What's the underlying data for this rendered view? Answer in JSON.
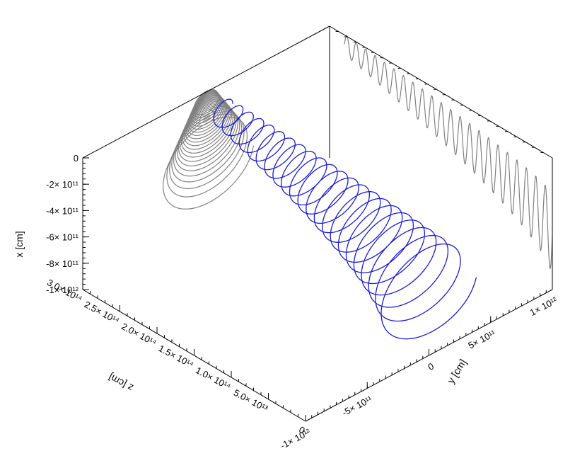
{
  "chart_data": {
    "type": "line",
    "projection": "3d",
    "axes": {
      "x": {
        "label": "x [cm]",
        "ticks": [
          {
            "value": 0,
            "label": "0"
          },
          {
            "value": -200000000000,
            "label": "-2× 10¹¹"
          },
          {
            "value": -400000000000,
            "label": "-4× 10¹¹"
          },
          {
            "value": -600000000000,
            "label": "-6× 10¹¹"
          },
          {
            "value": -800000000000,
            "label": "-8× 10¹¹"
          },
          {
            "value": -1000000000000,
            "label": "-1× 10¹²"
          }
        ],
        "range": [
          -1000000000000,
          0
        ]
      },
      "y": {
        "label": "y [cm]",
        "ticks": [
          {
            "value": -1000000000000,
            "label": "-1× 10¹²"
          },
          {
            "value": -500000000000,
            "label": "-5× 10¹¹"
          },
          {
            "value": 0,
            "label": "0"
          },
          {
            "value": 500000000000,
            "label": "5× 10¹¹"
          },
          {
            "value": 1000000000000,
            "label": "1× 10¹²"
          }
        ],
        "range": [
          -1000000000000,
          1000000000000
        ]
      },
      "z": {
        "label": "z [cm]",
        "ticks": [
          {
            "value": 0,
            "label": "0"
          },
          {
            "value": 50000000000000,
            "label": "5.0× 10¹³"
          },
          {
            "value": 100000000000000,
            "label": "1.0× 10¹⁴"
          },
          {
            "value": 150000000000000,
            "label": "1.5× 10¹⁴"
          },
          {
            "value": 200000000000000,
            "label": "2.0× 10¹⁴"
          },
          {
            "value": 250000000000000,
            "label": "2.5× 10¹⁴"
          },
          {
            "value": 300000000000000,
            "label": "3.0× 10¹⁴"
          }
        ],
        "range": [
          0,
          300000000000000
        ]
      }
    },
    "series": [
      {
        "role": "3d-trajectory",
        "color": "#1a1adc",
        "turns": 22,
        "z_range": [
          0,
          280000000000000
        ],
        "x_center_start": -600000000000,
        "x_center_end": -70000000000,
        "amplitude_start": 700000000000,
        "amplitude_end": 170000000000
      },
      {
        "role": "projection-xy",
        "color": "#808080"
      },
      {
        "role": "projection-xz",
        "color": "#808080"
      }
    ],
    "grid": false,
    "legend": "none"
  }
}
